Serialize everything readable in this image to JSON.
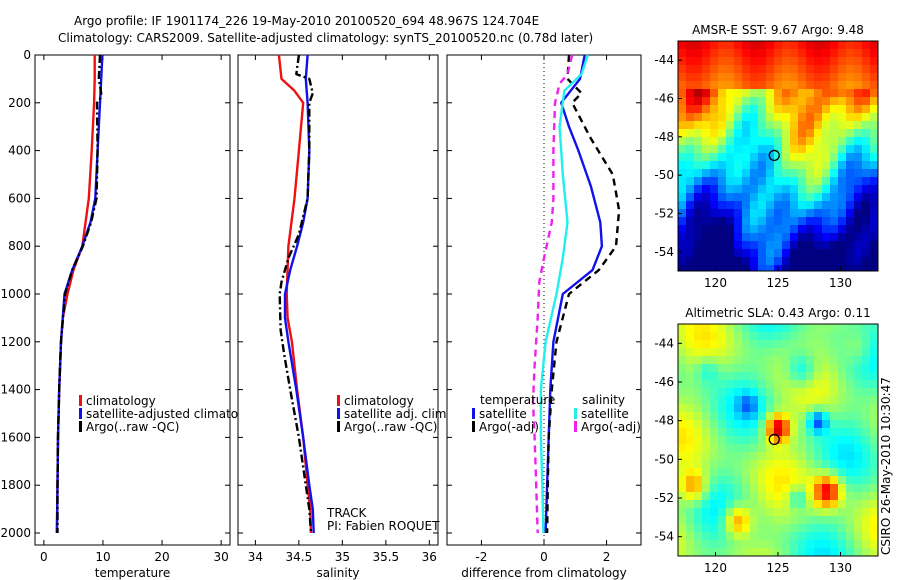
{
  "header": {
    "line1": "Argo profile: IF 1901174_226 19-May-2010 20100520_694 48.967S 124.704E",
    "line2": "Climatology: CARS2009. Satellite-adjusted climatology: synTS_20100520.nc (0.78d later)"
  },
  "side_label": "CSIRO 26-May-2010 10:30:47",
  "colors": {
    "climatology": "#ee1111",
    "satellite": "#1111ee",
    "argo": "#000000",
    "sal_satellite": "#22eeee",
    "sal_argo": "#ee22ee"
  },
  "chart_data": [
    {
      "type": "line",
      "xlabel": "temperature",
      "xlim": [
        -1.5,
        31.5
      ],
      "xticks": [
        0,
        10,
        20,
        30
      ],
      "ylim": [
        0,
        2050
      ],
      "yticks": [
        0,
        200,
        400,
        600,
        800,
        1000,
        1200,
        1400,
        1600,
        1800,
        2000
      ],
      "legend": [
        "climatology",
        "satellite-adjusted climatology",
        "Argo(..raw -QC)"
      ],
      "series": [
        {
          "name": "climatology",
          "color": "#ee1111",
          "style": "solid",
          "points": [
            [
              8.6,
              0
            ],
            [
              8.6,
              100
            ],
            [
              8.5,
              200
            ],
            [
              8.1,
              400
            ],
            [
              7.6,
              600
            ],
            [
              6.5,
              800
            ],
            [
              5.0,
              900
            ],
            [
              4.0,
              1000
            ],
            [
              3.2,
              1100
            ],
            [
              2.9,
              1200
            ],
            [
              2.6,
              1400
            ],
            [
              2.4,
              1600
            ],
            [
              2.3,
              1800
            ],
            [
              2.2,
              2000
            ]
          ]
        },
        {
          "name": "satellite-adjusted climatology",
          "color": "#1111ee",
          "style": "solid",
          "points": [
            [
              9.9,
              0
            ],
            [
              9.7,
              100
            ],
            [
              9.5,
              200
            ],
            [
              9.1,
              400
            ],
            [
              8.7,
              600
            ],
            [
              7.9,
              700
            ],
            [
              6.5,
              800
            ],
            [
              4.8,
              900
            ],
            [
              3.5,
              1000
            ],
            [
              2.9,
              1200
            ],
            [
              2.6,
              1400
            ],
            [
              2.4,
              1600
            ],
            [
              2.3,
              1800
            ],
            [
              2.2,
              2000
            ]
          ]
        },
        {
          "name": "Argo(..raw -QC)",
          "color": "#000000",
          "style": "dashdot",
          "points": [
            [
              9.5,
              0
            ],
            [
              9.3,
              100
            ],
            [
              9.7,
              160
            ],
            [
              9.6,
              180
            ],
            [
              9.0,
              200
            ],
            [
              9.1,
              400
            ],
            [
              8.9,
              600
            ],
            [
              8.0,
              700
            ],
            [
              6.6,
              800
            ],
            [
              4.8,
              900
            ],
            [
              3.6,
              1000
            ],
            [
              2.9,
              1200
            ],
            [
              2.6,
              1400
            ],
            [
              2.4,
              1600
            ],
            [
              2.3,
              1800
            ],
            [
              2.3,
              2000
            ]
          ]
        }
      ]
    },
    {
      "type": "line",
      "xlabel": "salinity",
      "xlim": [
        33.8,
        36.1
      ],
      "xticks": [
        34,
        34.5,
        35,
        35.5,
        36
      ],
      "xticklabels": [
        "34",
        "34.5",
        "35",
        "35.5",
        "36"
      ],
      "ylim": [
        0,
        2050
      ],
      "legend": [
        "climatology",
        "satellite adj. clim.",
        "Argo(..raw -QC)"
      ],
      "annotation": [
        "TRACK",
        "PI: Fabien ROQUET"
      ],
      "series": [
        {
          "name": "climatology",
          "color": "#ee1111",
          "style": "solid",
          "points": [
            [
              34.27,
              0
            ],
            [
              34.3,
              100
            ],
            [
              34.45,
              150
            ],
            [
              34.55,
              200
            ],
            [
              34.5,
              400
            ],
            [
              34.45,
              600
            ],
            [
              34.38,
              800
            ],
            [
              34.36,
              1000
            ],
            [
              34.37,
              1100
            ],
            [
              34.42,
              1200
            ],
            [
              34.48,
              1400
            ],
            [
              34.55,
              1600
            ],
            [
              34.6,
              1800
            ],
            [
              34.63,
              1900
            ],
            [
              34.64,
              2000
            ]
          ]
        },
        {
          "name": "satellite adj. clim.",
          "color": "#1111ee",
          "style": "solid",
          "points": [
            [
              34.6,
              0
            ],
            [
              34.58,
              100
            ],
            [
              34.6,
              200
            ],
            [
              34.62,
              400
            ],
            [
              34.6,
              600
            ],
            [
              34.55,
              700
            ],
            [
              34.48,
              800
            ],
            [
              34.4,
              900
            ],
            [
              34.34,
              1000
            ],
            [
              34.34,
              1100
            ],
            [
              34.38,
              1200
            ],
            [
              34.47,
              1400
            ],
            [
              34.55,
              1600
            ],
            [
              34.62,
              1800
            ],
            [
              34.66,
              1900
            ],
            [
              34.67,
              2000
            ]
          ]
        },
        {
          "name": "Argo(..raw -QC)",
          "color": "#000000",
          "style": "dashdot",
          "points": [
            [
              34.5,
              0
            ],
            [
              34.47,
              80
            ],
            [
              34.62,
              100
            ],
            [
              34.66,
              160
            ],
            [
              34.62,
              200
            ],
            [
              34.62,
              400
            ],
            [
              34.6,
              600
            ],
            [
              34.5,
              750
            ],
            [
              34.38,
              850
            ],
            [
              34.3,
              950
            ],
            [
              34.28,
              1000
            ],
            [
              34.29,
              1150
            ],
            [
              34.33,
              1250
            ],
            [
              34.4,
              1400
            ],
            [
              34.5,
              1600
            ],
            [
              34.58,
              1800
            ],
            [
              34.62,
              1900
            ],
            [
              34.64,
              2000
            ]
          ]
        }
      ]
    },
    {
      "type": "line",
      "xlabel": "difference from climatology",
      "xlim": [
        -3.1,
        3.1
      ],
      "xticks": [
        -2,
        0,
        2
      ],
      "ylim": [
        0,
        2050
      ],
      "legend": [
        "temperature",
        "satellite",
        "Argo(-adj)",
        "salinity",
        "satellite",
        "Argo(-adj)"
      ],
      "series": [
        {
          "name": "temperature satellite",
          "color": "#1111ee",
          "style": "solid",
          "points": [
            [
              1.3,
              0
            ],
            [
              1.15,
              100
            ],
            [
              0.55,
              200
            ],
            [
              0.8,
              300
            ],
            [
              1.1,
              400
            ],
            [
              1.5,
              550
            ],
            [
              1.8,
              700
            ],
            [
              1.85,
              800
            ],
            [
              1.55,
              900
            ],
            [
              0.6,
              1000
            ],
            [
              0.3,
              1200
            ],
            [
              0.2,
              1400
            ],
            [
              0.15,
              1600
            ],
            [
              0.1,
              1800
            ],
            [
              0.05,
              2000
            ]
          ]
        },
        {
          "name": "temperature Argo(-adj)",
          "color": "#000000",
          "style": "dashed",
          "points": [
            [
              0.8,
              0
            ],
            [
              0.75,
              100
            ],
            [
              1.2,
              160
            ],
            [
              0.9,
              200
            ],
            [
              1.5,
              350
            ],
            [
              2.2,
              500
            ],
            [
              2.4,
              650
            ],
            [
              2.3,
              800
            ],
            [
              1.75,
              900
            ],
            [
              0.8,
              1000
            ],
            [
              0.4,
              1200
            ],
            [
              0.25,
              1400
            ],
            [
              0.15,
              1600
            ],
            [
              0.12,
              1800
            ],
            [
              0.1,
              2000
            ]
          ]
        },
        {
          "name": "salinity satellite",
          "color": "#22eeee",
          "style": "solid",
          "points": [
            [
              1.4,
              0
            ],
            [
              1.2,
              80
            ],
            [
              0.65,
              150
            ],
            [
              0.5,
              300
            ],
            [
              0.6,
              500
            ],
            [
              0.75,
              700
            ],
            [
              0.6,
              850
            ],
            [
              0.4,
              1000
            ],
            [
              0.05,
              1200
            ],
            [
              -0.1,
              1400
            ],
            [
              -0.1,
              1600
            ],
            [
              -0.05,
              1800
            ],
            [
              -0.02,
              2000
            ]
          ]
        },
        {
          "name": "salinity Argo(-adj)",
          "color": "#ee22ee",
          "style": "dashed",
          "points": [
            [
              0.9,
              0
            ],
            [
              0.75,
              80
            ],
            [
              0.5,
              120
            ],
            [
              0.35,
              200
            ],
            [
              0.3,
              400
            ],
            [
              0.3,
              600
            ],
            [
              0.25,
              700
            ],
            [
              0.0,
              850
            ],
            [
              -0.15,
              950
            ],
            [
              -0.2,
              1100
            ],
            [
              -0.3,
              1300
            ],
            [
              -0.35,
              1450
            ],
            [
              -0.3,
              1600
            ],
            [
              -0.25,
              1800
            ],
            [
              -0.2,
              2000
            ]
          ]
        }
      ]
    },
    {
      "type": "heatmap",
      "title": "AMSR-E SST: 9.67 Argo: 9.48",
      "xlim": [
        117,
        133
      ],
      "ylim": [
        -55,
        -43
      ],
      "xticks": [
        120,
        125,
        130
      ],
      "yticks": [
        -44,
        -46,
        -48,
        -50,
        -52,
        -54
      ],
      "marker": {
        "lon": 124.7,
        "lat": -48.97
      },
      "field_description": "warm (orange/red) in north grading to cold (blue) in south"
    },
    {
      "type": "heatmap",
      "title": "Altimetric SLA: 0.43 Argo: 0.11",
      "xlim": [
        117,
        133
      ],
      "ylim": [
        -55,
        -43
      ],
      "xticks": [
        120,
        125,
        130
      ],
      "yticks": [
        -44,
        -46,
        -48,
        -50,
        -52,
        -54
      ],
      "marker": {
        "lon": 124.7,
        "lat": -48.97
      },
      "field_description": "mostly green anomaly with red/orange eddies and blue lows"
    }
  ]
}
